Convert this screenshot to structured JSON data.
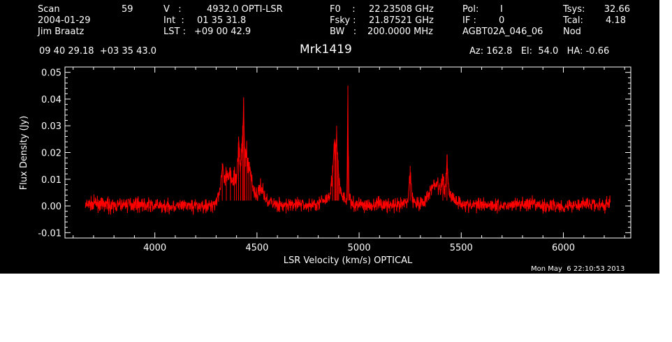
{
  "header": {
    "scan_label": "Scan",
    "scan_value": "59",
    "date": "2004-01-29",
    "observer": "Jim Braatz",
    "v_label": "V   :",
    "v_value": "4932.0 OPTI-LSR",
    "int_label": "Int  :",
    "int_value": "01 35 31.8",
    "lst_label": "LST :",
    "lst_value": "+09 00 42.9",
    "f0_label": "F0    :",
    "f0_value": "22.23508 GHz",
    "fsky_label": "Fsky :",
    "fsky_value": "21.87521 GHz",
    "bw_label": "BW   :",
    "bw_value": "200.0000 MHz",
    "pol_label": "Pol:",
    "pol_value": "I",
    "if_label": "IF :",
    "if_value": "0",
    "project": "AGBT02A_046_06",
    "tsys_label": "Tsys:",
    "tsys_value": "32.66",
    "tcal_label": "Tcal:",
    "tcal_value": "4.18",
    "mode": "Nod",
    "coords": "09 40 29.18  +03 35 43.0",
    "source": "Mrk1419",
    "az_el_ha": "Az: 162.8   El:  54.0   HA: -0.66",
    "timestamp": "Mon May  6 22:10:53 2013"
  },
  "chart_data": {
    "type": "line",
    "title": "Mrk1419",
    "xlabel": "LSR Velocity (km/s) OPTICAL",
    "ylabel": "Flux Density (Jy)",
    "xlim": [
      3560,
      6330
    ],
    "ylim": [
      -0.012,
      0.052
    ],
    "x_ticks": [
      4000,
      4500,
      5000,
      5500,
      6000
    ],
    "x_tick_labels": [
      "4000",
      "4500",
      "5000",
      "5500",
      "6000"
    ],
    "y_ticks": [
      -0.01,
      0.0,
      0.01,
      0.02,
      0.03,
      0.04,
      0.05
    ],
    "y_tick_labels": [
      "-0.01",
      "0.00",
      "0.01",
      "0.02",
      "0.03",
      "0.04",
      "0.05"
    ],
    "grid": false,
    "background": "#000000",
    "line_color": "#ff0000",
    "series": [
      {
        "x": [
          3660,
          3700,
          3800,
          3900,
          4000,
          4100,
          4200,
          4280,
          4300,
          4320,
          4330,
          4340,
          4350,
          4360,
          4370,
          4380,
          4390,
          4400,
          4410,
          4420,
          4430,
          4435,
          4440,
          4450,
          4460,
          4470,
          4480,
          4490,
          4500,
          4520,
          4540,
          4560,
          4580,
          4600,
          4620,
          4650,
          4700,
          4750,
          4800,
          4840,
          4860,
          4870,
          4880,
          4885,
          4890,
          4895,
          4900,
          4905,
          4910,
          4920,
          4930,
          4940,
          4945,
          4950,
          4960,
          4980,
          5000,
          5050,
          5100,
          5150,
          5200,
          5240,
          5250,
          5260,
          5280,
          5300,
          5320,
          5340,
          5350,
          5360,
          5370,
          5380,
          5390,
          5400,
          5410,
          5420,
          5430,
          5440,
          5450,
          5460,
          5480,
          5500,
          5550,
          5600,
          5700,
          5800,
          5900,
          6000,
          6100,
          6200,
          6230
        ],
        "y": [
          0.0,
          0.001,
          0.0,
          0.001,
          0.0,
          0.0,
          0.0,
          0.0,
          0.002,
          0.007,
          0.016,
          0.009,
          0.012,
          0.01,
          0.014,
          0.01,
          0.013,
          0.012,
          0.026,
          0.014,
          0.03,
          0.037,
          0.022,
          0.02,
          0.016,
          0.013,
          0.008,
          0.005,
          0.004,
          0.008,
          0.003,
          0.002,
          0.001,
          0.001,
          0.0,
          0.0,
          0.001,
          0.0,
          0.001,
          0.003,
          0.006,
          0.013,
          0.025,
          0.02,
          0.03,
          0.018,
          0.012,
          0.007,
          0.005,
          0.004,
          0.003,
          0.002,
          0.045,
          0.004,
          0.001,
          0.0,
          0.001,
          0.0,
          0.001,
          0.0,
          0.0,
          0.002,
          0.015,
          0.003,
          0.001,
          0.001,
          0.002,
          0.004,
          0.006,
          0.009,
          0.008,
          0.01,
          0.007,
          0.006,
          0.012,
          0.005,
          0.019,
          0.006,
          0.004,
          0.003,
          0.002,
          0.001,
          0.0,
          0.001,
          0.0,
          0.001,
          0.0,
          0.0,
          0.001,
          0.0,
          0.002
        ]
      }
    ]
  }
}
